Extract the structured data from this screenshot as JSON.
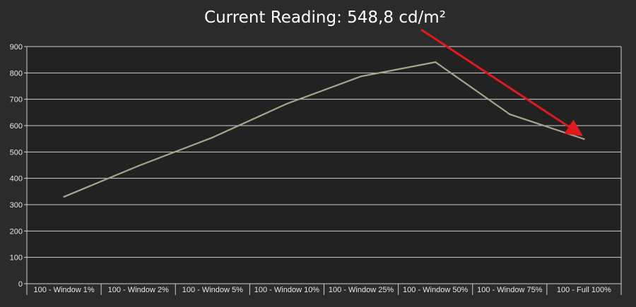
{
  "chart_data": {
    "type": "line",
    "title": "Current Reading: 548,8 cd/m²",
    "xlabel": "",
    "ylabel": "",
    "categories": [
      "100 - Window  1%",
      "100 - Window  2%",
      "100 - Window  5%",
      "100 - Window 10%",
      "100 - Window 25%",
      "100 - Window 50%",
      "100 - Window 75%",
      "100 - Full  100%"
    ],
    "values": [
      330,
      447,
      555,
      683,
      787,
      841,
      643,
      549
    ],
    "ylim": [
      0,
      900
    ],
    "yticks": [
      "0",
      "100",
      "200",
      "300",
      "400",
      "500",
      "600",
      "700",
      "800",
      "900"
    ],
    "grid": true,
    "legend": "none",
    "colors": {
      "background": "#2b2b2b",
      "plot_area": "#222222",
      "grid": "#d0d0d0",
      "line": "#a8a58a",
      "arrow": "#e01a1a"
    },
    "annotation": {
      "type": "arrow",
      "points_to_category": "100 - Full  100%",
      "points_to_value": 549
    }
  }
}
